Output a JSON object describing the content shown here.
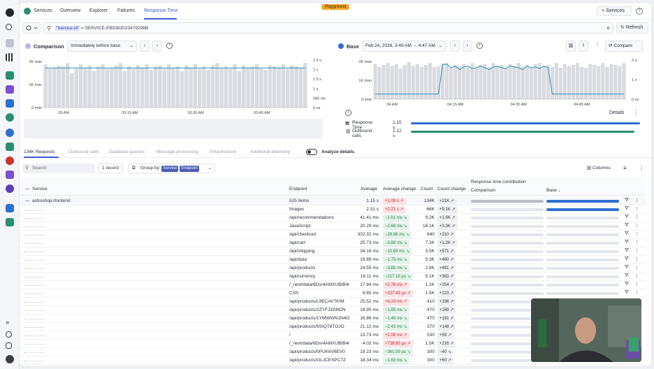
{
  "topnav": {
    "tabs": [
      {
        "label": "Services"
      },
      {
        "label": "Overview"
      },
      {
        "label": "Explorer"
      },
      {
        "label": "Failures"
      },
      {
        "label": "Response Time"
      }
    ],
    "badge": "Playground",
    "services_button": "+ Services",
    "help": "?"
  },
  "filter": {
    "key": "\"Service id\"",
    "value": " = SERVICE-EB9383023479296B",
    "clear": "×",
    "refresh": "Refresh"
  },
  "comparison": {
    "label": "Comparison",
    "timeframe": "Immediately before base",
    "y_left": [
      "2K /min",
      "1K /min",
      "0 /min"
    ],
    "y_right": [
      "2.5 s",
      "2 s",
      "1.5 s",
      "1 s",
      "580 ms",
      "0 ns"
    ],
    "x_ticks": [
      "03 AM",
      "03:15 AM",
      "03:30 AM",
      "03:45 AM"
    ],
    "response_time_line": [
      2.05,
      2.05,
      2.05,
      2.05,
      2.05,
      2.05,
      2.05,
      2.05,
      2.05,
      2.05,
      2.05,
      2.05,
      2.05,
      2.05,
      2.05,
      2.05,
      2.05,
      2.05,
      2.05,
      2.05,
      2.05,
      2.05,
      2.05,
      2.05,
      2.05,
      2.05,
      2.05,
      2.05,
      2.05,
      2.05,
      2.05,
      2.05,
      2.05,
      2.05,
      2.05,
      2.05,
      2.05,
      2.05,
      2.05,
      2.05,
      2.05,
      2.05,
      2.05,
      2.05,
      2.05,
      2.05,
      2.05,
      2.05,
      2.05,
      2.05,
      2.05,
      2.05,
      2.05,
      2.05,
      2.05,
      2.05,
      2.05,
      2.05,
      2.05,
      2.05
    ],
    "requests": [
      1900,
      1700,
      1750,
      1850,
      1800,
      1950,
      1500,
      1700,
      1900,
      1750,
      1850,
      1600,
      1800,
      1900,
      1700,
      1750,
      1850,
      1950,
      1600,
      1800,
      1700,
      1850,
      1750,
      1900,
      1650,
      1800,
      1850,
      1700,
      1900,
      1750,
      1800,
      1600,
      1850,
      1750,
      1900,
      1700,
      1800,
      1650,
      1850,
      1950,
      1750,
      1800,
      1700,
      1900,
      1600,
      1850,
      1750,
      1800,
      1900,
      1700,
      1650,
      1850,
      1800,
      1750,
      1900,
      1700,
      1850,
      1800,
      1750,
      1950
    ]
  },
  "base": {
    "label": "Base",
    "timeframe": "Feb 24, 2026, 3:49 AM → 4:47 AM",
    "compare_button": "Compare",
    "y_left": [
      "2K /min",
      "1K /min",
      "0 /min"
    ],
    "y_right": [
      "2 s",
      "1 s",
      "0 ns"
    ],
    "x_ticks": [
      "04 AM",
      "04:15 AM",
      "04:30 AM",
      "04:45 AM"
    ],
    "response_time_line": [
      0.3,
      0.3,
      0.3,
      0.3,
      0.3,
      0.3,
      0.3,
      0.3,
      0.3,
      0.3,
      0.3,
      0.3,
      0.3,
      0.3,
      0.3,
      0.3,
      2.0,
      2.0,
      1.8,
      1.9,
      1.7,
      1.85,
      1.9,
      1.75,
      1.8,
      1.9,
      1.8,
      1.7,
      1.85,
      1.9,
      1.8,
      1.75,
      1.9,
      1.85,
      1.8,
      1.7,
      1.9,
      1.8,
      1.85,
      1.75,
      1.9,
      1.8,
      0.3,
      0.3,
      0.3,
      0.3,
      0.3,
      0.3,
      0.3,
      0.3,
      0.3,
      0.3,
      0.3,
      0.3,
      0.3,
      0.3,
      0.3,
      0.3,
      0.3,
      0.3
    ],
    "requests": [
      1850,
      1700,
      1800,
      1900,
      1750,
      1850,
      1600,
      1800,
      1950,
      1750,
      1850,
      1700,
      1800,
      1900,
      1700,
      1750,
      1850,
      1900,
      1650,
      1800,
      1750,
      1850,
      1700,
      1900,
      1650,
      1800,
      1850,
      1700,
      1900,
      1750,
      1800,
      1650,
      1850,
      1750,
      1900,
      1700,
      1800,
      1650,
      1850,
      1900,
      1750,
      1800,
      1700,
      1900,
      1650,
      1850,
      1750,
      1800,
      1900,
      1700,
      1650,
      1850,
      1800,
      1750,
      1900,
      1700,
      1850,
      1800,
      1750,
      1900
    ],
    "details": "Details",
    "legend": [
      {
        "label": "Response Time",
        "value": "1.15 s",
        "color": "#2f6fd1"
      },
      {
        "label": "Outbound calls",
        "value": "1.12 s",
        "color": "#2a8f6e"
      }
    ]
  },
  "subtabs": [
    {
      "label": "134K Requests"
    },
    {
      "label": "Outbound calls"
    },
    {
      "label": "Database queries"
    },
    {
      "label": "Message processing"
    },
    {
      "label": "Infrastructure"
    },
    {
      "label": "Additional telemetry"
    }
  ],
  "analyze_details": "Analyze details",
  "toolbar": {
    "search_placeholder": "Search",
    "record_count": "1 record",
    "group_by_label": "Group by:",
    "group_chips": [
      "Service",
      "Endpoint"
    ],
    "columns": "Columns"
  },
  "table": {
    "headers": {
      "service": "Service",
      "endpoint": "Endpoint",
      "average": "Average",
      "average_change": "Average change",
      "count": "Count",
      "count_change": "Count change",
      "contribution": "Response time contribution",
      "comparison": "Comparison",
      "base": "Base ↓"
    },
    "group_row": {
      "service": "astroshop-frontend",
      "endpoint": "525 items",
      "average": "1.15 s",
      "average_change": "+1.09 s ↗",
      "change_dir": "up",
      "count": "134K",
      "count_change": "+21K ↗",
      "comparison_contrib": 1.0,
      "base_contrib": 1.0
    },
    "rows": [
      {
        "endpoint": "Images",
        "average": "2.31 s",
        "average_change": "+2.21 s ↗",
        "change_dir": "up",
        "count": "66K",
        "count_change": "+9.1K ↗",
        "comparison_contrib": 0.0,
        "base_contrib": 1.0
      },
      {
        "endpoint": "/api/recommendations",
        "average": "41.41 ms",
        "average_change": "−1.61 ms ↘",
        "change_dir": "down",
        "count": "9.2K",
        "count_change": "+1.6K ↗",
        "comparison_contrib": 0.0,
        "base_contrib": 0.0
      },
      {
        "endpoint": "JavaScript",
        "average": "20.29 ms",
        "average_change": "−2.68 ms ↘",
        "change_dir": "down",
        "count": "18.1K",
        "count_change": "+3.3K ↗",
        "comparison_contrib": 0.0,
        "base_contrib": 0.0
      },
      {
        "endpoint": "/api/checkout",
        "average": "302.32 ms",
        "average_change": "−28.86 ms ↘",
        "change_dir": "down",
        "count": "640",
        "count_change": "+210 ↗",
        "comparison_contrib": 0.0,
        "base_contrib": 0.0
      },
      {
        "endpoint": "/api/cart",
        "average": "25.73 ms",
        "average_change": "−3.88 ms ↘",
        "change_dir": "down",
        "count": "7.3K",
        "count_change": "+1.2K ↗",
        "comparison_contrib": 0.0,
        "base_contrib": 0.0
      },
      {
        "endpoint": "/api/shipping",
        "average": "34.18 ms",
        "average_change": "−10.69 ms ↘",
        "change_dir": "down",
        "count": "3.5K",
        "count_change": "+571 ↗",
        "comparison_contrib": 0.0,
        "base_contrib": 0.0
      },
      {
        "endpoint": "/api/data",
        "average": "19.89 ms",
        "average_change": "−1.75 ms ↘",
        "change_dir": "down",
        "count": "5.3K",
        "count_change": "+460 ↗",
        "comparison_contrib": 0.0,
        "base_contrib": 0.0
      },
      {
        "endpoint": "/api/products",
        "average": "24.55 ms",
        "average_change": "−3.88 ms ↘",
        "change_dir": "down",
        "count": "2.8K",
        "count_change": "+481 ↗",
        "comparison_contrib": 0.0,
        "base_contrib": 0.0
      },
      {
        "endpoint": "/api/currency",
        "average": "16.11 ms",
        "average_change": "−217.18 µs ↘",
        "change_dir": "down",
        "count": "5.1K",
        "count_change": "+363 ↗",
        "comparison_contrib": 0.0,
        "base_contrib": 0.0
      },
      {
        "endpoint": "/_next/data/6Dsr4AMXUBtB4r",
        "average": "17.84 ms",
        "average_change": "+2.76 ms ↗",
        "change_dir": "up",
        "count": "1.2K",
        "count_change": "+254 ↗",
        "comparison_contrib": 0.0,
        "base_contrib": 0.0
      },
      {
        "endpoint": "CSS",
        "average": "8.65 ms",
        "average_change": "+127.43 µs ↗",
        "change_dir": "up",
        "count": "1.5K",
        "count_change": "+223 ↗",
        "comparison_contrib": 0.0,
        "base_contrib": 0.0
      },
      {
        "endpoint": "/api/products/L9ECAV7KIM",
        "average": "25.52 ms",
        "average_change": "+6.24 ms ↗",
        "change_dir": "up",
        "count": "410",
        "count_change": "+196 ↗",
        "comparison_contrib": 0.0,
        "base_contrib": 0.0
      },
      {
        "endpoint": "/api/products/2ZYFJ3GM2N",
        "average": "18.95 ms",
        "average_change": "−1.85 ms ↘",
        "change_dir": "down",
        "count": "470",
        "count_change": "+169 ↗",
        "comparison_contrib": 0.0,
        "base_contrib": 0.0
      },
      {
        "endpoint": "/api/products/1YMWWN1N4O",
        "average": "16.86 ms",
        "average_change": "−1.46 ms ↘",
        "change_dir": "down",
        "count": "470",
        "count_change": "+181 ↗",
        "comparison_contrib": 0.0,
        "base_contrib": 0.0
      },
      {
        "endpoint": "/api/products/9SIQT8TOJO",
        "average": "21.12 ms",
        "average_change": "−2.43 ms ↘",
        "change_dir": "down",
        "count": "370",
        "count_change": "+148 ↗",
        "comparison_contrib": 0.0,
        "base_contrib": 0.0
      },
      {
        "endpoint": "/",
        "average": "13.73 ms",
        "average_change": "+2.08 ms ↗",
        "change_dir": "up",
        "count": "530",
        "count_change": "+59 ↗",
        "comparison_contrib": 0.0,
        "base_contrib": 0.0
      },
      {
        "endpoint": "/_next/data/6Dsr4AMXUBtB4r",
        "average": "4.02 ms",
        "average_change": "+728.85 µs ↗",
        "change_dir": "up",
        "count": "1.5K",
        "count_change": "+216 ↗",
        "comparison_contrib": 0.0,
        "base_contrib": 0.0
      },
      {
        "endpoint": "/api/products/0PUK6V6EV0",
        "average": "19.23 ms",
        "average_change": "−361.09 µs ↘",
        "change_dir": "down",
        "count": "300",
        "count_change": "−40 ↘",
        "comparison_contrib": 0.0,
        "base_contrib": 0.0
      },
      {
        "endpoint": "/api/products/OLJCESPC7Z",
        "average": "18.34 ms",
        "average_change": "−1.63 ms ↘",
        "change_dir": "down",
        "count": "300",
        "count_change": "+60 ↗",
        "comparison_contrib": 0.0,
        "base_contrib": 0.0
      }
    ]
  },
  "colors": {
    "accent": "#3d5ad6",
    "bar": "#d9dbe0",
    "response_line": "#2f8fb5",
    "base_bar": "#2f6fd1",
    "up": "#c0262d",
    "down": "#2f7f4f"
  }
}
